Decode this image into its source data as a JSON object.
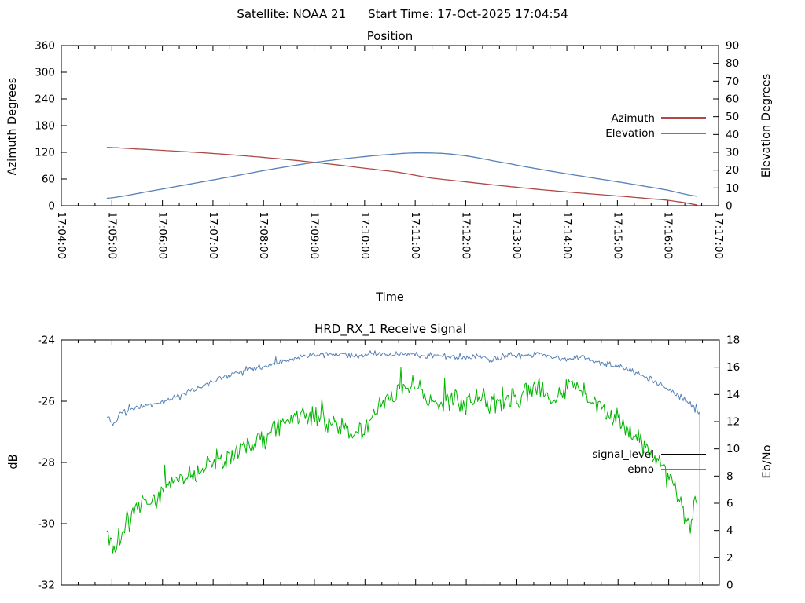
{
  "header": {
    "satellite": "Satellite: NOAA 21",
    "start_time": "Start Time: 17-Oct-2025 17:04:54"
  },
  "chart_data": [
    {
      "type": "line",
      "title": "Position",
      "xlabel": "Time",
      "x_axis": {
        "start": "17:04:00",
        "end": "17:17:00",
        "duration_s": 780,
        "major_tick_s": 60,
        "minor_tick_s": 20,
        "tick_labels": [
          "17:04:00",
          "17:05:00",
          "17:06:00",
          "17:07:00",
          "17:08:00",
          "17:09:00",
          "17:10:00",
          "17:11:00",
          "17:12:00",
          "17:13:00",
          "17:14:00",
          "17:15:00",
          "17:16:00",
          "17:17:00"
        ]
      },
      "y_left": {
        "label": "Azimuth Degrees",
        "min": 0,
        "max": 360,
        "step": 60
      },
      "y_right": {
        "label": "Elevation Degrees",
        "min": 0,
        "max": 90,
        "step": 10
      },
      "grid": false,
      "legend_position": "inside-right",
      "series": [
        {
          "name": "Azimuth",
          "axis": "left",
          "color": "#b04848",
          "legend_color": "#b04848",
          "noise": 0,
          "points": [
            [
              54,
              131
            ],
            [
              90,
              127.5
            ],
            [
              137,
              122.5
            ],
            [
              184,
              117
            ],
            [
              231,
              110
            ],
            [
              277,
              102
            ],
            [
              324,
              92.5
            ],
            [
              371,
              82
            ],
            [
              400,
              75
            ],
            [
              436,
              63
            ],
            [
              483,
              53
            ],
            [
              530,
              43.5
            ],
            [
              576,
              35
            ],
            [
              623,
              27.5
            ],
            [
              670,
              20.5
            ],
            [
              717,
              13
            ],
            [
              740,
              7
            ],
            [
              756,
              1.5
            ]
          ]
        },
        {
          "name": "Elevation",
          "axis": "right",
          "color": "#5781b8",
          "legend_color": "#5781b8",
          "noise": 0,
          "points": [
            [
              54,
              4.2
            ],
            [
              106,
              8.2
            ],
            [
              153,
              12.2
            ],
            [
              200,
              16.2
            ],
            [
              246,
              20.2
            ],
            [
              293,
              23.8
            ],
            [
              340,
              26.6
            ],
            [
              390,
              28.8
            ],
            [
              425,
              29.7
            ],
            [
              470,
              28.6
            ],
            [
              530,
              23.8
            ],
            [
              576,
              19.8
            ],
            [
              623,
              16.2
            ],
            [
              670,
              12.7
            ],
            [
              717,
              9.0
            ],
            [
              757,
              5.2
            ]
          ]
        }
      ]
    },
    {
      "type": "line",
      "title": "HRD_RX_1 Receive Signal",
      "xlabel": "",
      "x_axis": {
        "duration_s": 780,
        "major_tick_s": 60,
        "minor_tick_s": 20,
        "tick_labels": []
      },
      "y_left": {
        "label": "dB",
        "min": -32,
        "max": -24,
        "step": 2
      },
      "y_right": {
        "label": "Eb/No",
        "min": 0,
        "max": 18,
        "step": 2
      },
      "grid": false,
      "legend_position": "inside-right",
      "series": [
        {
          "name": "signal_level",
          "axis": "left",
          "color": "#00b400",
          "legend_color": "#000000",
          "noise": 0.22,
          "points": [
            [
              54,
              -30.3
            ],
            [
              64,
              -30.7
            ],
            [
              80,
              -29.8
            ],
            [
              100,
              -29.3
            ],
            [
              130,
              -28.7
            ],
            [
              160,
              -28.3
            ],
            [
              190,
              -27.9
            ],
            [
              215,
              -27.5
            ],
            [
              240,
              -27.2
            ],
            [
              258,
              -26.8
            ],
            [
              275,
              -26.55
            ],
            [
              295,
              -26.5
            ],
            [
              315,
              -26.6
            ],
            [
              335,
              -26.85
            ],
            [
              352,
              -27.0
            ],
            [
              368,
              -26.5
            ],
            [
              385,
              -25.9
            ],
            [
              405,
              -25.6
            ],
            [
              420,
              -25.5
            ],
            [
              437,
              -25.9
            ],
            [
              452,
              -26.1
            ],
            [
              468,
              -25.9
            ],
            [
              483,
              -26.1
            ],
            [
              498,
              -25.85
            ],
            [
              512,
              -26.15
            ],
            [
              528,
              -25.8
            ],
            [
              542,
              -26.1
            ],
            [
              555,
              -25.6
            ],
            [
              568,
              -25.45
            ],
            [
              583,
              -25.95
            ],
            [
              598,
              -25.6
            ],
            [
              612,
              -25.5
            ],
            [
              628,
              -26.0
            ],
            [
              642,
              -26.3
            ],
            [
              658,
              -26.6
            ],
            [
              672,
              -26.9
            ],
            [
              688,
              -27.3
            ],
            [
              702,
              -27.9
            ],
            [
              714,
              -28.3
            ],
            [
              724,
              -28.8
            ],
            [
              734,
              -29.3
            ],
            [
              744,
              -29.95
            ],
            [
              750,
              -29.6
            ],
            [
              755,
              -29.35
            ]
          ]
        },
        {
          "name": "ebno",
          "axis": "right",
          "color": "#5781b8",
          "legend_color": "#5781b8",
          "noise": 0.13,
          "drop_to_min_at_end": true,
          "points": [
            [
              54,
              12.4
            ],
            [
              62,
              11.9
            ],
            [
              72,
              12.7
            ],
            [
              90,
              13.0
            ],
            [
              110,
              13.3
            ],
            [
              130,
              13.7
            ],
            [
              150,
              14.2
            ],
            [
              170,
              14.7
            ],
            [
              190,
              15.2
            ],
            [
              210,
              15.6
            ],
            [
              230,
              15.95
            ],
            [
              250,
              16.25
            ],
            [
              270,
              16.55
            ],
            [
              290,
              16.8
            ],
            [
              310,
              16.9
            ],
            [
              330,
              17.0
            ],
            [
              350,
              16.85
            ],
            [
              370,
              17.0
            ],
            [
              390,
              16.9
            ],
            [
              410,
              17.0
            ],
            [
              430,
              16.85
            ],
            [
              450,
              16.9
            ],
            [
              470,
              16.65
            ],
            [
              490,
              16.8
            ],
            [
              510,
              16.55
            ],
            [
              530,
              16.9
            ],
            [
              550,
              16.8
            ],
            [
              570,
              16.95
            ],
            [
              590,
              16.6
            ],
            [
              610,
              16.75
            ],
            [
              630,
              16.5
            ],
            [
              650,
              16.2
            ],
            [
              670,
              15.85
            ],
            [
              690,
              15.35
            ],
            [
              705,
              14.95
            ],
            [
              718,
              14.45
            ],
            [
              730,
              13.95
            ],
            [
              742,
              13.5
            ],
            [
              750,
              13.0
            ],
            [
              757,
              12.6
            ]
          ]
        }
      ]
    }
  ]
}
